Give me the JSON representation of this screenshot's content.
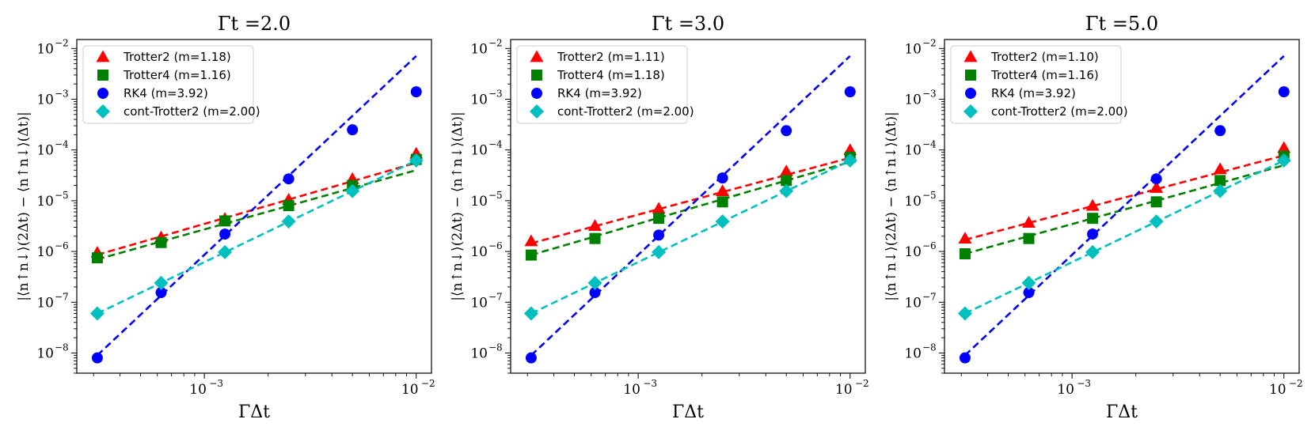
{
  "chart_data": [
    {
      "type": "scatter",
      "title": "Γt =2.0",
      "xlabel": "ΓΔt",
      "ylabel": "|⟨n↑n↓⟩(2Δt) − ⟨n↑n↓⟩(Δt)|",
      "xscale": "log",
      "yscale": "log",
      "xlim": [
        0.00025,
        0.0118
      ],
      "ylim": [
        4e-09,
        0.015
      ],
      "x_ticks": [
        {
          "value": 0.001,
          "base": "10",
          "exp": "−3"
        },
        {
          "value": 0.01,
          "base": "10",
          "exp": "−2"
        }
      ],
      "y_ticks": [
        {
          "value": 1e-08,
          "base": "10",
          "exp": "−8"
        },
        {
          "value": 1e-07,
          "base": "10",
          "exp": "−7"
        },
        {
          "value": 1e-06,
          "base": "10",
          "exp": "−6"
        },
        {
          "value": 1e-05,
          "base": "10",
          "exp": "−5"
        },
        {
          "value": 0.0001,
          "base": "10",
          "exp": "−4"
        },
        {
          "value": 0.001,
          "base": "10",
          "exp": "−3"
        },
        {
          "value": 0.01,
          "base": "10",
          "exp": "−2"
        }
      ],
      "legend_position": "top-left",
      "series": [
        {
          "name": "Trotter2 (m=1.18)",
          "marker": "triangle",
          "color": "#ff0000",
          "x": [
            0.0003125,
            0.000625,
            0.00125,
            0.0025,
            0.005,
            0.01
          ],
          "y": [
            9.5e-07,
            1.9e-06,
            4.4e-06,
            1.05e-05,
            2.7e-05,
            8.5e-05
          ],
          "fit_x": [
            0.0003125,
            0.01
          ],
          "fit_y": [
            8.6e-07,
            5.6e-05
          ]
        },
        {
          "name": "Trotter4 (m=1.16)",
          "marker": "square",
          "color": "#008000",
          "x": [
            0.0003125,
            0.000625,
            0.00125,
            0.0025,
            0.005,
            0.01
          ],
          "y": [
            7.5e-07,
            1.5e-06,
            4e-06,
            8e-06,
            2e-05,
            6.5e-05
          ],
          "fit_x": [
            0.0003125,
            0.01
          ],
          "fit_y": [
            7e-07,
            4e-05
          ]
        },
        {
          "name": "RK4 (m=3.92)",
          "marker": "circle",
          "color": "#0000ff",
          "x": [
            0.0003125,
            0.000625,
            0.00125,
            0.0025,
            0.005,
            0.01
          ],
          "y": [
            8e-09,
            1.55e-07,
            2.2e-06,
            2.7e-05,
            0.00025,
            0.0014
          ],
          "fit_x": [
            0.0003125,
            0.01
          ],
          "fit_y": [
            9e-09,
            0.0071
          ]
        },
        {
          "name": "cont-Trotter2 (m=2.00)",
          "marker": "diamond",
          "color": "#00bfbf",
          "x": [
            0.0003125,
            0.000625,
            0.00125,
            0.0025,
            0.005,
            0.01
          ],
          "y": [
            6e-08,
            2.4e-07,
            9.7e-07,
            3.9e-06,
            1.55e-05,
            6.2e-05
          ],
          "fit_x": [
            0.0003125,
            0.01
          ],
          "fit_y": [
            6e-08,
            6.2e-05
          ]
        }
      ]
    },
    {
      "type": "scatter",
      "title": "Γt =3.0",
      "xlabel": "ΓΔt",
      "ylabel": "|⟨n↑n↓⟩(2Δt) − ⟨n↑n↓⟩(Δt)|",
      "xscale": "log",
      "yscale": "log",
      "xlim": [
        0.00025,
        0.0118
      ],
      "ylim": [
        4e-09,
        0.015
      ],
      "x_ticks": [
        {
          "value": 0.001,
          "base": "10",
          "exp": "−3"
        },
        {
          "value": 0.01,
          "base": "10",
          "exp": "−2"
        }
      ],
      "y_ticks": [
        {
          "value": 1e-08,
          "base": "10",
          "exp": "−8"
        },
        {
          "value": 1e-07,
          "base": "10",
          "exp": "−7"
        },
        {
          "value": 1e-06,
          "base": "10",
          "exp": "−6"
        },
        {
          "value": 1e-05,
          "base": "10",
          "exp": "−5"
        },
        {
          "value": 0.0001,
          "base": "10",
          "exp": "−4"
        },
        {
          "value": 0.001,
          "base": "10",
          "exp": "−3"
        },
        {
          "value": 0.01,
          "base": "10",
          "exp": "−2"
        }
      ],
      "legend_position": "top-left",
      "series": [
        {
          "name": "Trotter2 (m=1.11)",
          "marker": "triangle",
          "color": "#ff0000",
          "x": [
            0.0003125,
            0.000625,
            0.00125,
            0.0025,
            0.005,
            0.01
          ],
          "y": [
            1.6e-06,
            3.2e-06,
            7e-06,
            1.55e-05,
            3.8e-05,
            0.0001
          ],
          "fit_x": [
            0.0003125,
            0.01
          ],
          "fit_y": [
            1.45e-06,
            7e-05
          ]
        },
        {
          "name": "Trotter4 (m=1.18)",
          "marker": "square",
          "color": "#008000",
          "x": [
            0.0003125,
            0.000625,
            0.00125,
            0.0025,
            0.005,
            0.01
          ],
          "y": [
            8.5e-07,
            1.8e-06,
            4.5e-06,
            9.5e-06,
            2.5e-05,
            7.2e-05
          ],
          "fit_x": [
            0.0003125,
            0.01
          ],
          "fit_y": [
            8.5e-07,
            5.8e-05
          ]
        },
        {
          "name": "RK4 (m=3.92)",
          "marker": "circle",
          "color": "#0000ff",
          "x": [
            0.0003125,
            0.000625,
            0.00125,
            0.0025,
            0.005,
            0.01
          ],
          "y": [
            8e-09,
            1.55e-07,
            2.1e-06,
            2.8e-05,
            0.00024,
            0.0014
          ],
          "fit_x": [
            0.0003125,
            0.01
          ],
          "fit_y": [
            9e-09,
            0.0071
          ]
        },
        {
          "name": "cont-Trotter2 (m=2.00)",
          "marker": "diamond",
          "color": "#00bfbf",
          "x": [
            0.0003125,
            0.000625,
            0.00125,
            0.0025,
            0.005,
            0.01
          ],
          "y": [
            6e-08,
            2.4e-07,
            9.7e-07,
            3.9e-06,
            1.55e-05,
            6.2e-05
          ],
          "fit_x": [
            0.0003125,
            0.01
          ],
          "fit_y": [
            6e-08,
            6.2e-05
          ]
        }
      ]
    },
    {
      "type": "scatter",
      "title": "Γt =5.0",
      "xlabel": "ΓΔt",
      "ylabel": "|⟨n↑n↓⟩(2Δt) − ⟨n↑n↓⟩(Δt)|",
      "xscale": "log",
      "yscale": "log",
      "xlim": [
        0.00025,
        0.0118
      ],
      "ylim": [
        4e-09,
        0.015
      ],
      "x_ticks": [
        {
          "value": 0.001,
          "base": "10",
          "exp": "−3"
        },
        {
          "value": 0.01,
          "base": "10",
          "exp": "−2"
        }
      ],
      "y_ticks": [
        {
          "value": 1e-08,
          "base": "10",
          "exp": "−8"
        },
        {
          "value": 1e-07,
          "base": "10",
          "exp": "−7"
        },
        {
          "value": 1e-06,
          "base": "10",
          "exp": "−6"
        },
        {
          "value": 1e-05,
          "base": "10",
          "exp": "−5"
        },
        {
          "value": 0.0001,
          "base": "10",
          "exp": "−4"
        },
        {
          "value": 0.001,
          "base": "10",
          "exp": "−3"
        },
        {
          "value": 0.01,
          "base": "10",
          "exp": "−2"
        }
      ],
      "legend_position": "top-left",
      "series": [
        {
          "name": "Trotter2 (m=1.10)",
          "marker": "triangle",
          "color": "#ff0000",
          "x": [
            0.0003125,
            0.000625,
            0.00125,
            0.0025,
            0.005,
            0.01
          ],
          "y": [
            1.8e-06,
            3.7e-06,
            8e-06,
            1.8e-05,
            4.2e-05,
            0.00011
          ],
          "fit_x": [
            0.0003125,
            0.01
          ],
          "fit_y": [
            1.7e-06,
            7.8e-05
          ]
        },
        {
          "name": "Trotter4 (m=1.16)",
          "marker": "square",
          "color": "#008000",
          "x": [
            0.0003125,
            0.000625,
            0.00125,
            0.0025,
            0.005,
            0.01
          ],
          "y": [
            9e-07,
            1.8e-06,
            4.5e-06,
            9.5e-06,
            2.5e-05,
            7.5e-05
          ],
          "fit_x": [
            0.0003125,
            0.01
          ],
          "fit_y": [
            9e-07,
            5e-05
          ]
        },
        {
          "name": "RK4 (m=3.92)",
          "marker": "circle",
          "color": "#0000ff",
          "x": [
            0.0003125,
            0.000625,
            0.00125,
            0.0025,
            0.005,
            0.01
          ],
          "y": [
            8e-09,
            1.55e-07,
            2.2e-06,
            2.7e-05,
            0.00024,
            0.0014
          ],
          "fit_x": [
            0.0003125,
            0.01
          ],
          "fit_y": [
            9e-09,
            0.0071
          ]
        },
        {
          "name": "cont-Trotter2 (m=2.00)",
          "marker": "diamond",
          "color": "#00bfbf",
          "x": [
            0.0003125,
            0.000625,
            0.00125,
            0.0025,
            0.005,
            0.01
          ],
          "y": [
            6e-08,
            2.4e-07,
            9.7e-07,
            3.9e-06,
            1.55e-05,
            6.2e-05
          ],
          "fit_x": [
            0.0003125,
            0.01
          ],
          "fit_y": [
            6e-08,
            6.2e-05
          ]
        }
      ]
    }
  ]
}
